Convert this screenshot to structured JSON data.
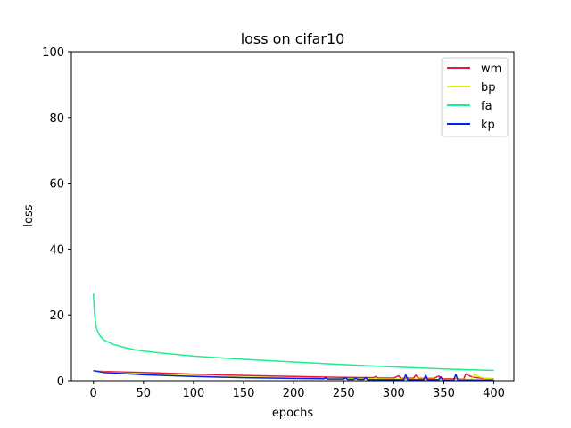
{
  "chart_data": {
    "type": "line",
    "title": "loss on cifar10",
    "xlabel": "epochs",
    "ylabel": "loss",
    "xlim": [
      -22,
      420
    ],
    "ylim": [
      0,
      100
    ],
    "xticks": [
      0,
      50,
      100,
      150,
      200,
      250,
      300,
      350,
      400
    ],
    "yticks": [
      0,
      20,
      40,
      60,
      80,
      100
    ],
    "grid": false,
    "legend_position": "top-right",
    "series": [
      {
        "name": "wm",
        "color": "#e8173c",
        "x": [
          0,
          10,
          50,
          100,
          150,
          200,
          250,
          280,
          282,
          284,
          300,
          305,
          307,
          320,
          322,
          325,
          340,
          345,
          347,
          360,
          362,
          370,
          372,
          375,
          380,
          390,
          400
        ],
        "y": [
          2.9,
          2.8,
          2.5,
          2.0,
          1.6,
          1.3,
          1.0,
          0.9,
          1.3,
          0.8,
          0.8,
          1.5,
          0.7,
          0.8,
          1.7,
          0.7,
          0.7,
          1.4,
          0.6,
          0.6,
          0.5,
          0.5,
          2.1,
          1.5,
          1.0,
          0.7,
          0.6
        ]
      },
      {
        "name": "bp",
        "color": "#d8f000",
        "x": [
          0,
          10,
          50,
          100,
          150,
          200,
          250,
          300,
          350,
          378,
          380,
          385,
          390,
          400
        ],
        "y": [
          3.0,
          2.6,
          2.0,
          1.5,
          1.1,
          0.8,
          0.6,
          0.5,
          0.4,
          0.4,
          1.9,
          1.2,
          0.8,
          0.5
        ]
      },
      {
        "name": "fa",
        "color": "#19f08c",
        "x": [
          0,
          1,
          2,
          3,
          5,
          7,
          10,
          15,
          20,
          30,
          40,
          50,
          75,
          100,
          150,
          200,
          250,
          300,
          350,
          400
        ],
        "y": [
          26.5,
          21.0,
          18.0,
          16.0,
          14.5,
          13.5,
          12.5,
          11.7,
          11.0,
          10.2,
          9.5,
          9.0,
          8.2,
          7.5,
          6.5,
          5.7,
          4.9,
          4.2,
          3.6,
          3.1
        ]
      },
      {
        "name": "kp",
        "color": "#0022ee",
        "x": [
          0,
          10,
          50,
          100,
          150,
          200,
          230,
          232,
          234,
          250,
          252,
          254,
          260,
          262,
          264,
          270,
          272,
          274,
          280,
          300,
          310,
          312,
          314,
          330,
          332,
          334,
          345,
          347,
          349,
          360,
          362,
          364,
          380,
          400
        ],
        "y": [
          3.1,
          2.5,
          1.8,
          1.3,
          0.9,
          0.7,
          0.6,
          0.9,
          0.5,
          0.5,
          0.9,
          0.4,
          0.4,
          0.8,
          0.4,
          0.4,
          1.0,
          0.3,
          0.3,
          0.3,
          0.3,
          1.8,
          0.3,
          0.3,
          1.7,
          0.3,
          0.3,
          1.2,
          0.2,
          0.2,
          1.9,
          0.2,
          0.2,
          0.2
        ]
      }
    ]
  }
}
